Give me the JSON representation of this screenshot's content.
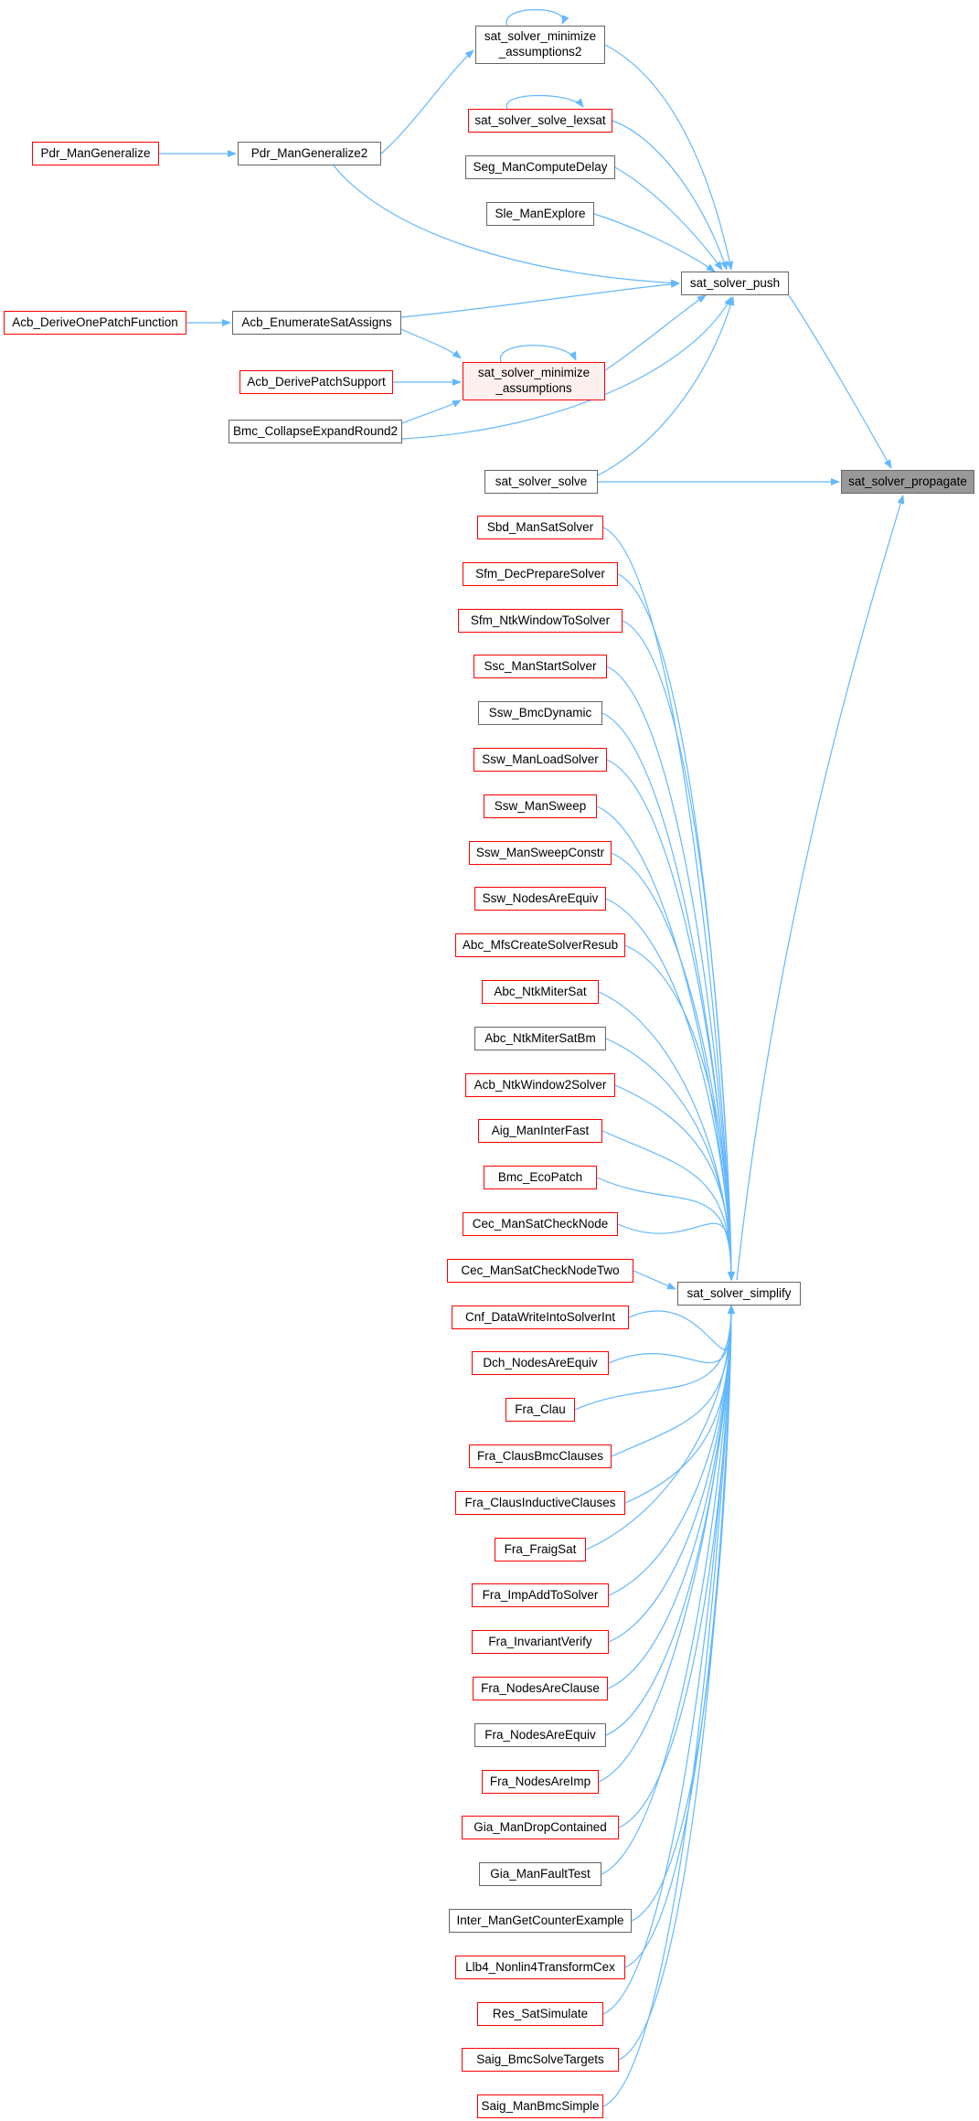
{
  "colors": {
    "edge": "#63b8ff",
    "border_default": "#666666",
    "border_incomplete": "#ff0000",
    "focus_fill": "#999999",
    "pink_fill": "#fff0f0"
  },
  "nodes": {
    "minimize_assumptions2": "sat_solver_minimize\n_assumptions2",
    "solve_lexsat": "sat_solver_solve_lexsat",
    "seg_computedelay": "Seg_ManComputeDelay",
    "sle_explore": "Sle_ManExplore",
    "pdr_mangeneralize": "Pdr_ManGeneralize",
    "pdr_mangeneralize2": "Pdr_ManGeneralize2",
    "sat_solver_push": "sat_solver_push",
    "acb_deriveonepatch": "Acb_DeriveOnePatchFunction",
    "acb_enumeratesat": "Acb_EnumerateSatAssigns",
    "minimize_assumptions": "sat_solver_minimize\n_assumptions",
    "acb_derivepatchsupport": "Acb_DerivePatchSupport",
    "bmc_collapseexpand": "Bmc_CollapseExpandRound2",
    "sat_solver_solve": "sat_solver_solve",
    "sat_solver_propagate": "sat_solver_propagate",
    "sat_solver_simplify": "sat_solver_simplify"
  },
  "callers": [
    {
      "label": "Sbd_ManSatSolver",
      "red": true
    },
    {
      "label": "Sfm_DecPrepareSolver",
      "red": true
    },
    {
      "label": "Sfm_NtkWindowToSolver",
      "red": true
    },
    {
      "label": "Ssc_ManStartSolver",
      "red": true
    },
    {
      "label": "Ssw_BmcDynamic",
      "red": false
    },
    {
      "label": "Ssw_ManLoadSolver",
      "red": true
    },
    {
      "label": "Ssw_ManSweep",
      "red": true
    },
    {
      "label": "Ssw_ManSweepConstr",
      "red": true
    },
    {
      "label": "Ssw_NodesAreEquiv",
      "red": true
    },
    {
      "label": "Abc_MfsCreateSolverResub",
      "red": true
    },
    {
      "label": "Abc_NtkMiterSat",
      "red": true
    },
    {
      "label": "Abc_NtkMiterSatBm",
      "red": false
    },
    {
      "label": "Acb_NtkWindow2Solver",
      "red": true
    },
    {
      "label": "Aig_ManInterFast",
      "red": true
    },
    {
      "label": "Bmc_EcoPatch",
      "red": true
    },
    {
      "label": "Cec_ManSatCheckNode",
      "red": true
    },
    {
      "label": "Cec_ManSatCheckNodeTwo",
      "red": true
    },
    {
      "label": "Cnf_DataWriteIntoSolverInt",
      "red": true
    },
    {
      "label": "Dch_NodesAreEquiv",
      "red": true
    },
    {
      "label": "Fra_Clau",
      "red": true
    },
    {
      "label": "Fra_ClausBmcClauses",
      "red": true
    },
    {
      "label": "Fra_ClausInductiveClauses",
      "red": true
    },
    {
      "label": "Fra_FraigSat",
      "red": true
    },
    {
      "label": "Fra_ImpAddToSolver",
      "red": true
    },
    {
      "label": "Fra_InvariantVerify",
      "red": true
    },
    {
      "label": "Fra_NodesAreClause",
      "red": true
    },
    {
      "label": "Fra_NodesAreEquiv",
      "red": false
    },
    {
      "label": "Fra_NodesAreImp",
      "red": true
    },
    {
      "label": "Gia_ManDropContained",
      "red": true
    },
    {
      "label": "Gia_ManFaultTest",
      "red": false
    },
    {
      "label": "Inter_ManGetCounterExample",
      "red": false
    },
    {
      "label": "Llb4_Nonlin4TransformCex",
      "red": true
    },
    {
      "label": "Res_SatSimulate",
      "red": true
    },
    {
      "label": "Saig_BmcSolveTargets",
      "red": true
    },
    {
      "label": "Saig_ManBmcSimple",
      "red": true
    }
  ]
}
